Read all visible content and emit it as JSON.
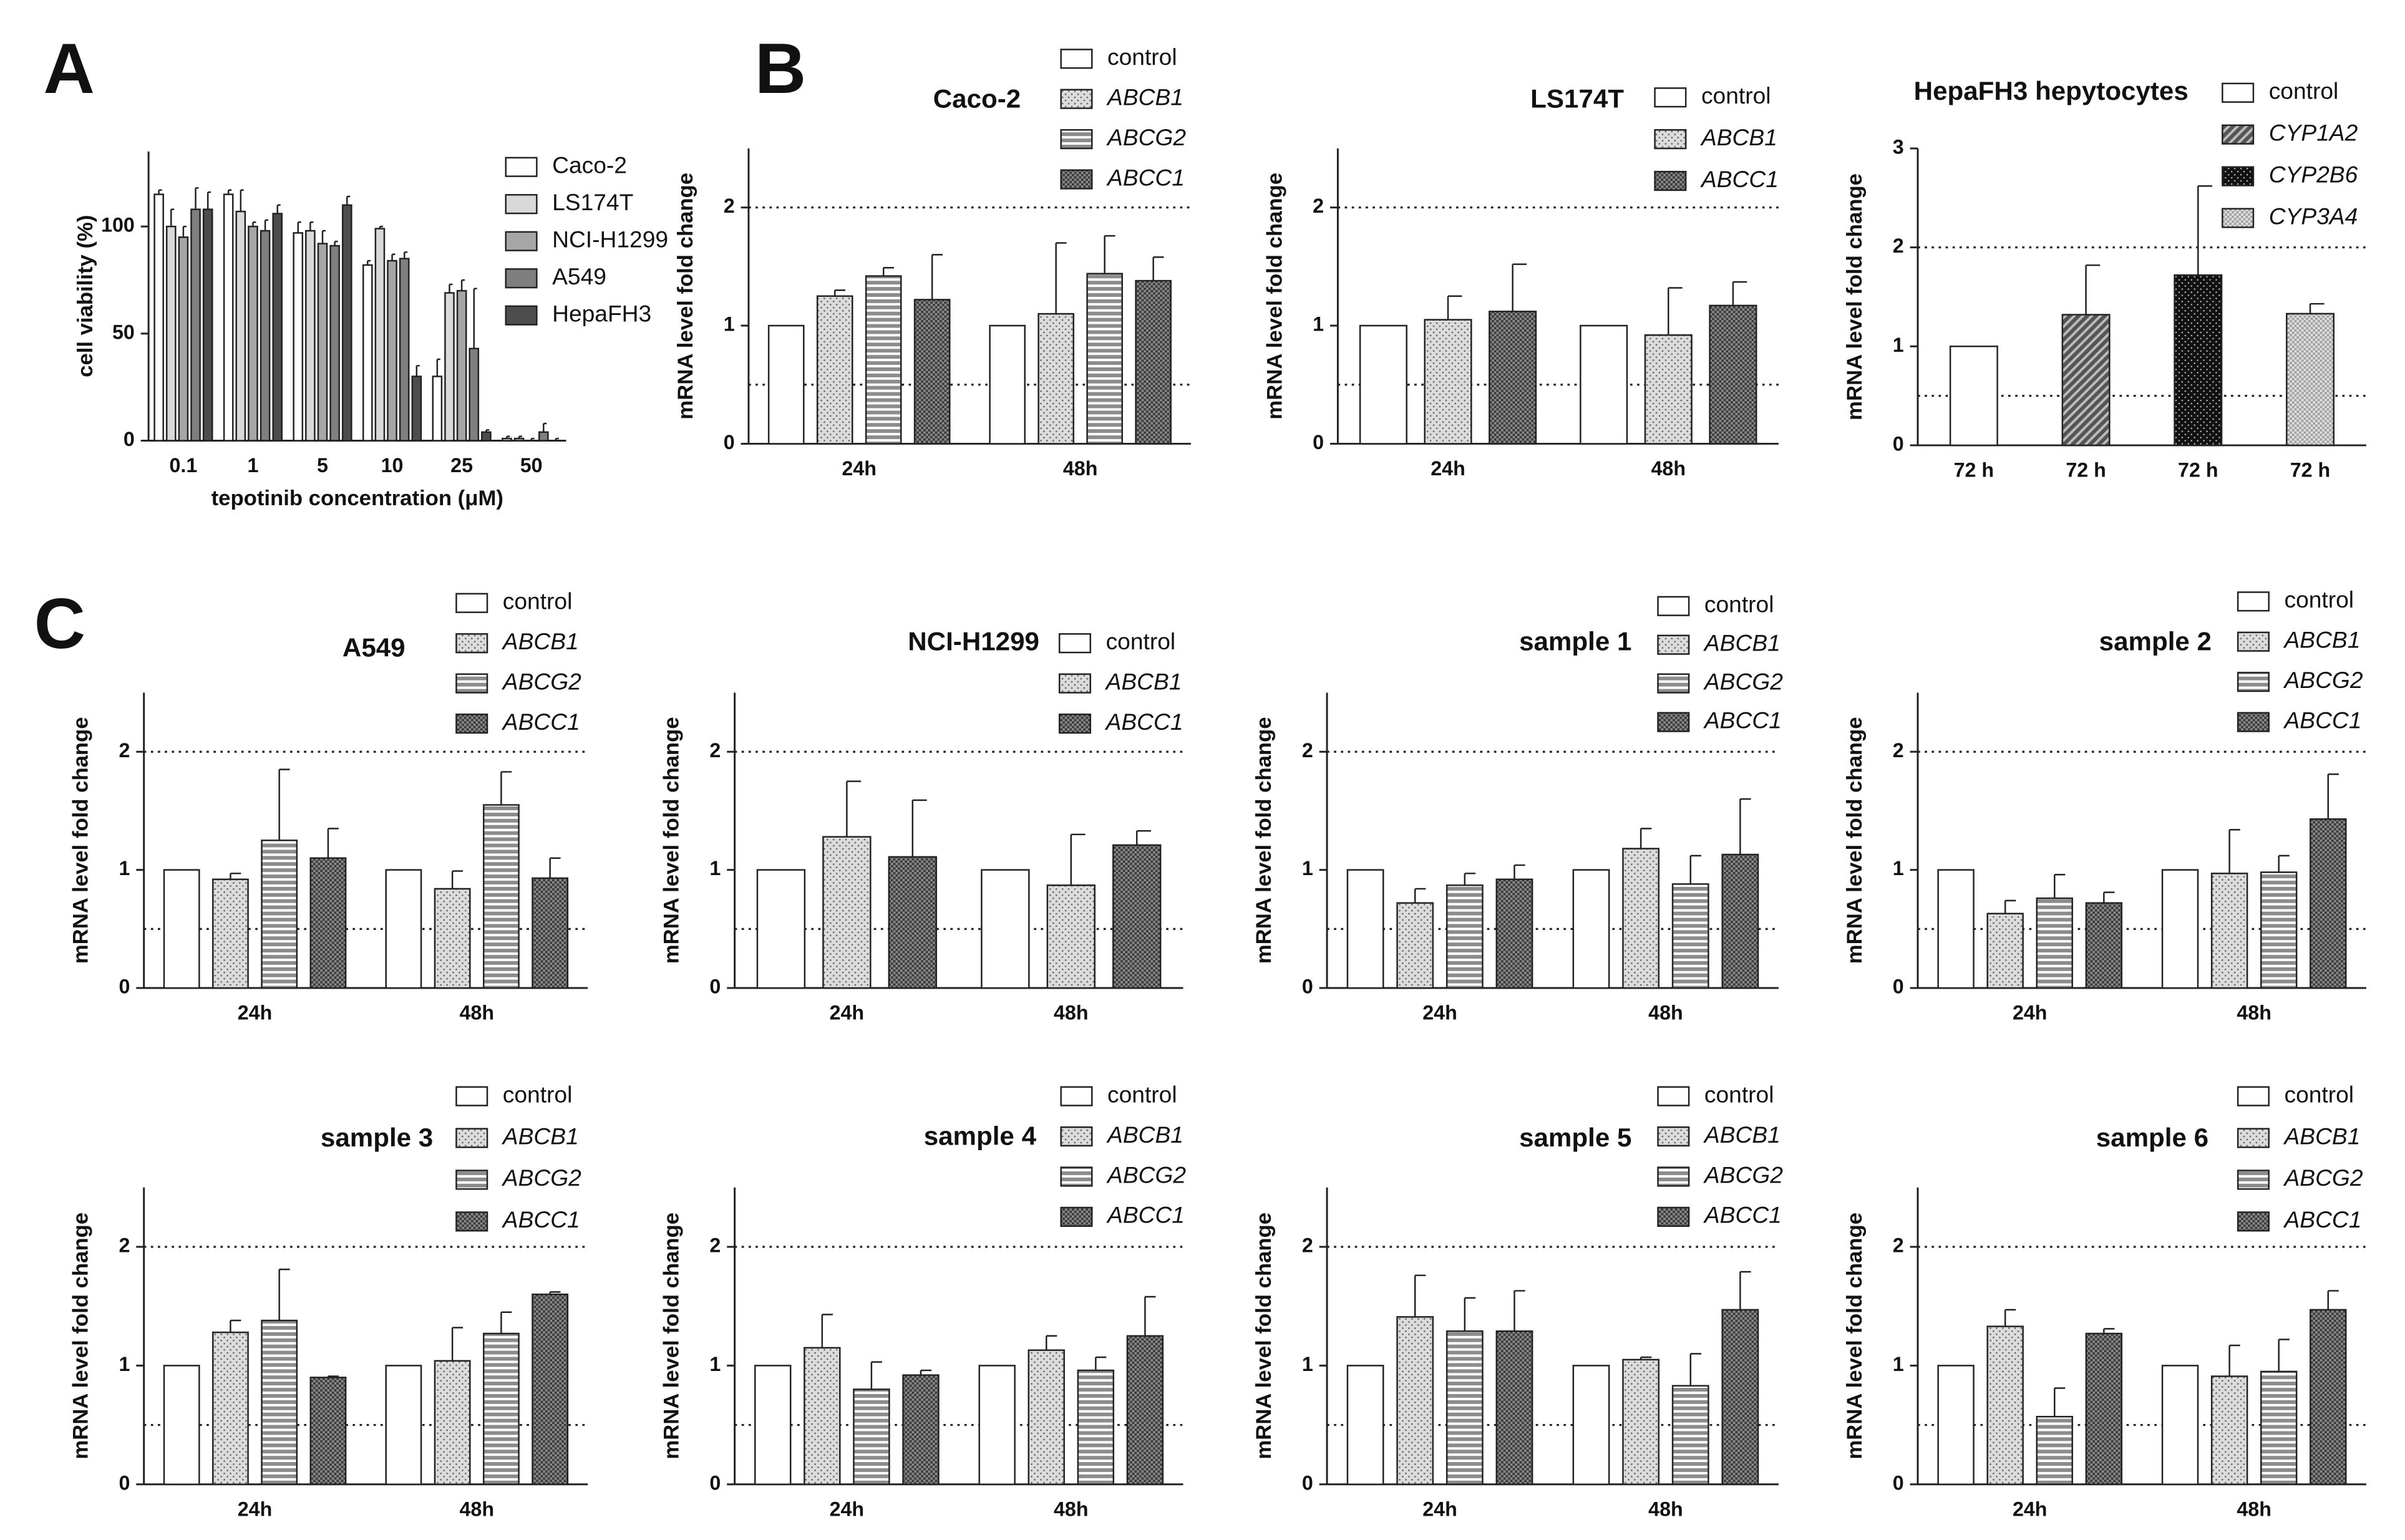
{
  "chart_data": [
    {
      "type": "bar",
      "panel": "A",
      "ylabel": "cell viability (%)",
      "xlabel": "tepotinib concentration (μM)",
      "categories": [
        "0.1",
        "1",
        "5",
        "10",
        "25",
        "50"
      ],
      "ylim": [
        0,
        135
      ],
      "yticks": [
        0,
        50,
        100
      ],
      "series": [
        {
          "name": "Caco-2",
          "color": "#ffffff",
          "values": [
            115,
            115,
            97,
            82,
            30,
            1
          ],
          "errors": [
            2,
            2,
            5,
            2,
            8,
            1
          ]
        },
        {
          "name": "LS174T",
          "color": "#d9d9d9",
          "values": [
            100,
            107,
            98,
            99,
            69,
            1
          ],
          "errors": [
            8,
            10,
            4,
            1,
            4,
            1
          ]
        },
        {
          "name": "NCI-H1299",
          "color": "#a6a6a6",
          "values": [
            95,
            100,
            92,
            84,
            70,
            0
          ],
          "errors": [
            5,
            2,
            6,
            3,
            5,
            1
          ]
        },
        {
          "name": "A549",
          "color": "#7f7f7f",
          "values": [
            108,
            98,
            91,
            85,
            43,
            4
          ],
          "errors": [
            10,
            5,
            2,
            3,
            28,
            4
          ]
        },
        {
          "name": "HepaFH3",
          "color": "#4d4d4d",
          "values": [
            108,
            106,
            110,
            30,
            4,
            0
          ],
          "errors": [
            8,
            4,
            4,
            5,
            1,
            1
          ]
        }
      ]
    },
    {
      "type": "bar",
      "panel": "B",
      "title": "Caco-2",
      "ylabel": "mRNA level fold change",
      "categories": [
        "24h",
        "48h"
      ],
      "ylim": [
        0,
        2.5
      ],
      "yticks": [
        0,
        1,
        2
      ],
      "reference_lines": [
        0.5,
        2
      ],
      "series": [
        {
          "name": "control",
          "color": "#ffffff",
          "values": [
            1,
            1
          ]
        },
        {
          "name": "ABCB1",
          "color": "#dcdcdc",
          "pattern": "dots",
          "italic": true,
          "values": [
            1.25,
            1.1
          ],
          "errors": [
            0.05,
            0.6
          ]
        },
        {
          "name": "ABCG2",
          "color": "#8c8c8c",
          "pattern": "hstripes",
          "italic": true,
          "values": [
            1.42,
            1.44
          ],
          "errors": [
            0.07,
            0.32
          ]
        },
        {
          "name": "ABCC1",
          "color": "#3a3a3a",
          "pattern": "checker",
          "italic": true,
          "values": [
            1.22,
            1.38
          ],
          "errors": [
            0.38,
            0.2
          ]
        }
      ]
    },
    {
      "type": "bar",
      "title": "LS174T",
      "ylabel": "mRNA level fold change",
      "categories": [
        "24h",
        "48h"
      ],
      "ylim": [
        0,
        2.5
      ],
      "yticks": [
        0,
        1,
        2
      ],
      "reference_lines": [
        0.5,
        2
      ],
      "series": [
        {
          "name": "control",
          "color": "#ffffff",
          "values": [
            1,
            1
          ]
        },
        {
          "name": "ABCB1",
          "color": "#dcdcdc",
          "pattern": "dots",
          "italic": true,
          "values": [
            1.05,
            0.92
          ],
          "errors": [
            0.2,
            0.4
          ]
        },
        {
          "name": "ABCC1",
          "color": "#3a3a3a",
          "pattern": "checker",
          "italic": true,
          "values": [
            1.12,
            1.17
          ],
          "errors": [
            0.4,
            0.2
          ]
        }
      ]
    },
    {
      "type": "bar",
      "title": "HepaFH3 hepytocytes",
      "ylabel": "mRNA level fold change",
      "categories": [
        "72 h",
        "72 h",
        "72 h",
        "72 h"
      ],
      "ylim": [
        0,
        3
      ],
      "yticks": [
        0,
        1,
        2,
        3
      ],
      "reference_lines": [
        0.5,
        2
      ],
      "series": [
        {
          "name": "control",
          "color": "#ffffff",
          "values": [
            1,
            null,
            null,
            null
          ]
        },
        {
          "name": "CYP1A2",
          "color": "#555555",
          "pattern": "diagonal",
          "italic": true,
          "values": [
            null,
            1.32,
            null,
            null
          ],
          "errors": [
            null,
            0.5,
            null,
            null
          ]
        },
        {
          "name": "CYP2B6",
          "color": "#111111",
          "pattern": "dots-dark",
          "italic": true,
          "values": [
            null,
            null,
            1.72,
            null
          ],
          "errors": [
            null,
            null,
            0.9,
            null
          ]
        },
        {
          "name": "CYP3A4",
          "color": "#a0a0a0",
          "pattern": "checker-light",
          "italic": true,
          "values": [
            null,
            null,
            null,
            1.33
          ],
          "errors": [
            null,
            null,
            null,
            0.1
          ]
        }
      ]
    },
    {
      "type": "bar",
      "panel": "C",
      "title": "A549",
      "ylabel": "mRNA level fold change",
      "categories": [
        "24h",
        "48h"
      ],
      "ylim": [
        0,
        2.5
      ],
      "yticks": [
        0,
        1,
        2
      ],
      "reference_lines": [
        0.5,
        2
      ],
      "series": [
        {
          "name": "control",
          "color": "#ffffff",
          "values": [
            1,
            1
          ]
        },
        {
          "name": "ABCB1",
          "color": "#dcdcdc",
          "pattern": "dots",
          "italic": true,
          "values": [
            0.92,
            0.84
          ],
          "errors": [
            0.05,
            0.15
          ]
        },
        {
          "name": "ABCG2",
          "color": "#8c8c8c",
          "pattern": "hstripes",
          "italic": true,
          "values": [
            1.25,
            1.55
          ],
          "errors": [
            0.6,
            0.28
          ]
        },
        {
          "name": "ABCC1",
          "color": "#3a3a3a",
          "pattern": "checker",
          "italic": true,
          "values": [
            1.1,
            0.93
          ],
          "errors": [
            0.25,
            0.17
          ]
        }
      ]
    },
    {
      "type": "bar",
      "title": "NCI-H1299",
      "ylabel": "mRNA level fold change",
      "categories": [
        "24h",
        "48h"
      ],
      "ylim": [
        0,
        2.5
      ],
      "yticks": [
        0,
        1,
        2
      ],
      "reference_lines": [
        0.5,
        2
      ],
      "series": [
        {
          "name": "control",
          "color": "#ffffff",
          "values": [
            1,
            1
          ]
        },
        {
          "name": "ABCB1",
          "color": "#dcdcdc",
          "pattern": "dots",
          "italic": true,
          "values": [
            1.28,
            0.87
          ],
          "errors": [
            0.47,
            0.43
          ]
        },
        {
          "name": "ABCC1",
          "color": "#3a3a3a",
          "pattern": "checker",
          "italic": true,
          "values": [
            1.11,
            1.21
          ],
          "errors": [
            0.48,
            0.12
          ]
        }
      ]
    },
    {
      "type": "bar",
      "title": "sample 1",
      "ylabel": "mRNA level fold change",
      "categories": [
        "24h",
        "48h"
      ],
      "ylim": [
        0,
        2.5
      ],
      "yticks": [
        0,
        1,
        2
      ],
      "reference_lines": [
        0.5,
        2
      ],
      "series": [
        {
          "name": "control",
          "color": "#ffffff",
          "values": [
            1,
            1
          ]
        },
        {
          "name": "ABCB1",
          "color": "#dcdcdc",
          "pattern": "dots",
          "italic": true,
          "values": [
            0.72,
            1.18
          ],
          "errors": [
            0.12,
            0.17
          ]
        },
        {
          "name": "ABCG2",
          "color": "#8c8c8c",
          "pattern": "hstripes",
          "italic": true,
          "values": [
            0.87,
            0.88
          ],
          "errors": [
            0.1,
            0.24
          ]
        },
        {
          "name": "ABCC1",
          "color": "#3a3a3a",
          "pattern": "checker",
          "italic": true,
          "values": [
            0.92,
            1.13
          ],
          "errors": [
            0.12,
            0.47
          ]
        }
      ]
    },
    {
      "type": "bar",
      "title": "sample 2",
      "ylabel": "mRNA level fold change",
      "categories": [
        "24h",
        "48h"
      ],
      "ylim": [
        0,
        2.5
      ],
      "yticks": [
        0,
        1,
        2
      ],
      "reference_lines": [
        0.5,
        2
      ],
      "series": [
        {
          "name": "control",
          "color": "#ffffff",
          "values": [
            1,
            1
          ]
        },
        {
          "name": "ABCB1",
          "color": "#dcdcdc",
          "pattern": "dots",
          "italic": true,
          "values": [
            0.63,
            0.97
          ],
          "errors": [
            0.11,
            0.37
          ]
        },
        {
          "name": "ABCG2",
          "color": "#8c8c8c",
          "pattern": "hstripes",
          "italic": true,
          "values": [
            0.76,
            0.98
          ],
          "errors": [
            0.2,
            0.14
          ]
        },
        {
          "name": "ABCC1",
          "color": "#3a3a3a",
          "pattern": "checker",
          "italic": true,
          "values": [
            0.72,
            1.43
          ],
          "errors": [
            0.09,
            0.38
          ]
        }
      ]
    },
    {
      "type": "bar",
      "title": "sample 3",
      "ylabel": "mRNA level fold change",
      "categories": [
        "24h",
        "48h"
      ],
      "ylim": [
        0,
        2.5
      ],
      "yticks": [
        0,
        1,
        2
      ],
      "reference_lines": [
        0.5,
        2
      ],
      "series": [
        {
          "name": "control",
          "color": "#ffffff",
          "values": [
            1,
            1
          ]
        },
        {
          "name": "ABCB1",
          "color": "#dcdcdc",
          "pattern": "dots",
          "italic": true,
          "values": [
            1.28,
            1.04
          ],
          "errors": [
            0.1,
            0.28
          ]
        },
        {
          "name": "ABCG2",
          "color": "#8c8c8c",
          "pattern": "hstripes",
          "italic": true,
          "values": [
            1.38,
            1.27
          ],
          "errors": [
            0.43,
            0.18
          ]
        },
        {
          "name": "ABCC1",
          "color": "#3a3a3a",
          "pattern": "checker",
          "italic": true,
          "values": [
            0.9,
            1.6
          ],
          "errors": [
            0.01,
            0.02
          ]
        }
      ]
    },
    {
      "type": "bar",
      "title": "sample 4",
      "ylabel": "mRNA level fold change",
      "categories": [
        "24h",
        "48h"
      ],
      "ylim": [
        0,
        2.5
      ],
      "yticks": [
        0,
        1,
        2
      ],
      "reference_lines": [
        0.5,
        2
      ],
      "series": [
        {
          "name": "control",
          "color": "#ffffff",
          "values": [
            1,
            1
          ]
        },
        {
          "name": "ABCB1",
          "color": "#dcdcdc",
          "pattern": "dots",
          "italic": true,
          "values": [
            1.15,
            1.13
          ],
          "errors": [
            0.28,
            0.12
          ]
        },
        {
          "name": "ABCG2",
          "color": "#8c8c8c",
          "pattern": "hstripes",
          "italic": true,
          "values": [
            0.8,
            0.96
          ],
          "errors": [
            0.23,
            0.11
          ]
        },
        {
          "name": "ABCC1",
          "color": "#3a3a3a",
          "pattern": "checker",
          "italic": true,
          "values": [
            0.92,
            1.25
          ],
          "errors": [
            0.04,
            0.33
          ]
        }
      ]
    },
    {
      "type": "bar",
      "title": "sample 5",
      "ylabel": "mRNA level fold change",
      "categories": [
        "24h",
        "48h"
      ],
      "ylim": [
        0,
        2.5
      ],
      "yticks": [
        0,
        1,
        2
      ],
      "reference_lines": [
        0.5,
        2
      ],
      "series": [
        {
          "name": "control",
          "color": "#ffffff",
          "values": [
            1,
            1
          ]
        },
        {
          "name": "ABCB1",
          "color": "#dcdcdc",
          "pattern": "dots",
          "italic": true,
          "values": [
            1.41,
            1.05
          ],
          "errors": [
            0.35,
            0.02
          ]
        },
        {
          "name": "ABCG2",
          "color": "#8c8c8c",
          "pattern": "hstripes",
          "italic": true,
          "values": [
            1.29,
            0.83
          ],
          "errors": [
            0.28,
            0.27
          ]
        },
        {
          "name": "ABCC1",
          "color": "#3a3a3a",
          "pattern": "checker",
          "italic": true,
          "values": [
            1.29,
            1.47
          ],
          "errors": [
            0.34,
            0.32
          ]
        }
      ]
    },
    {
      "type": "bar",
      "title": "sample 6",
      "ylabel": "mRNA level fold change",
      "categories": [
        "24h",
        "48h"
      ],
      "ylim": [
        0,
        2.5
      ],
      "yticks": [
        0,
        1,
        2
      ],
      "reference_lines": [
        0.5,
        2
      ],
      "series": [
        {
          "name": "control",
          "color": "#ffffff",
          "values": [
            1,
            1
          ]
        },
        {
          "name": "ABCB1",
          "color": "#dcdcdc",
          "pattern": "dots",
          "italic": true,
          "values": [
            1.33,
            0.91
          ],
          "errors": [
            0.14,
            0.26
          ]
        },
        {
          "name": "ABCG2",
          "color": "#8c8c8c",
          "pattern": "hstripes",
          "italic": true,
          "values": [
            0.57,
            0.95
          ],
          "errors": [
            0.24,
            0.27
          ]
        },
        {
          "name": "ABCC1",
          "color": "#3a3a3a",
          "pattern": "checker",
          "italic": true,
          "values": [
            1.27,
            1.47
          ],
          "errors": [
            0.04,
            0.16
          ]
        }
      ]
    }
  ]
}
